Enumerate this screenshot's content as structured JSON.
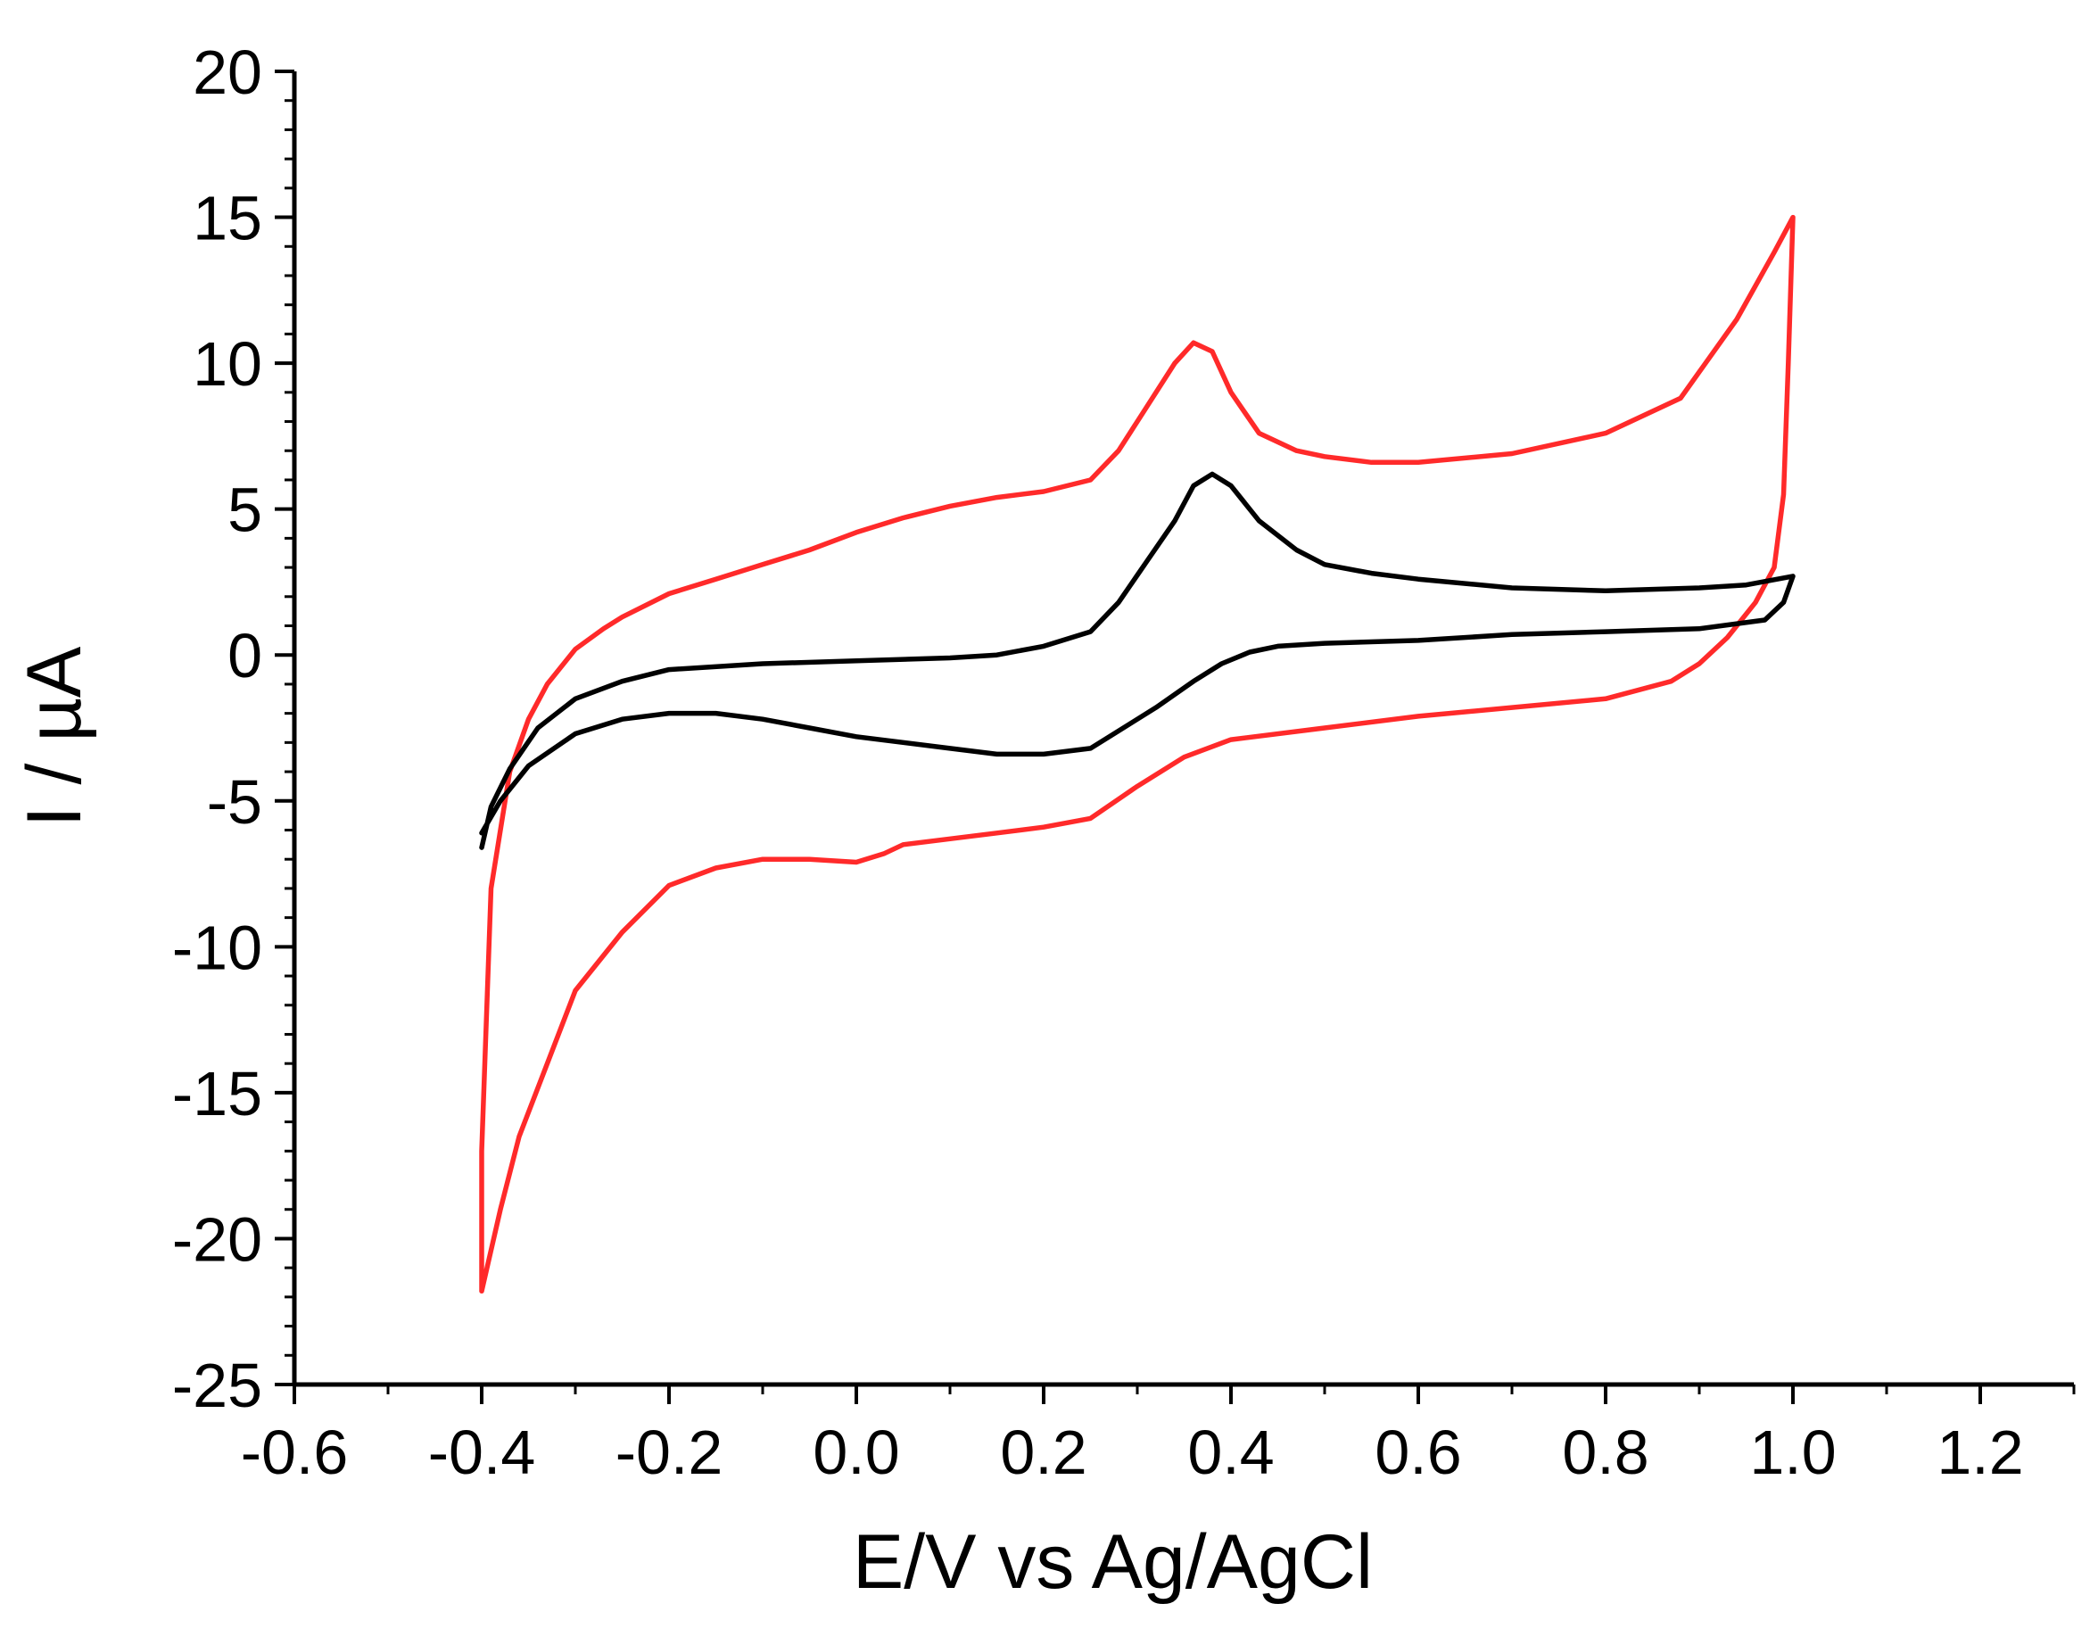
{
  "chart_data": {
    "type": "line",
    "title": "",
    "xlabel": "E/V vs Ag/AgCl",
    "ylabel": "I / µA",
    "xlim": [
      -0.6,
      1.3
    ],
    "ylim": [
      -25,
      20
    ],
    "x_ticks": [
      -0.6,
      -0.4,
      -0.2,
      0.0,
      0.2,
      0.4,
      0.6,
      0.8,
      1.0,
      1.2
    ],
    "x_tick_labels": [
      "-0.6",
      "-0.4",
      "-0.2",
      "0.0",
      "0.2",
      "0.4",
      "0.6",
      "0.8",
      "1.0",
      "1.2"
    ],
    "y_ticks": [
      -25,
      -20,
      -15,
      -10,
      -5,
      0,
      5,
      10,
      15,
      20
    ],
    "y_tick_labels": [
      "-25",
      "-20",
      "-15",
      "-10",
      "-5",
      "0",
      "5",
      "10",
      "15",
      "20"
    ],
    "grid": false,
    "legend": "none",
    "series": [
      {
        "name": "red voltammogram",
        "color": "#ff2a2a",
        "points": [
          [
            -0.4,
            -21.8
          ],
          [
            -0.4,
            -17
          ],
          [
            -0.39,
            -8
          ],
          [
            -0.37,
            -4
          ],
          [
            -0.35,
            -2.2
          ],
          [
            -0.33,
            -1
          ],
          [
            -0.3,
            0.2
          ],
          [
            -0.27,
            0.9
          ],
          [
            -0.25,
            1.3
          ],
          [
            -0.2,
            2.1
          ],
          [
            -0.15,
            2.6
          ],
          [
            -0.1,
            3.1
          ],
          [
            -0.05,
            3.6
          ],
          [
            0.0,
            4.2
          ],
          [
            0.05,
            4.7
          ],
          [
            0.1,
            5.1
          ],
          [
            0.15,
            5.4
          ],
          [
            0.2,
            5.6
          ],
          [
            0.25,
            6.0
          ],
          [
            0.28,
            7.0
          ],
          [
            0.31,
            8.5
          ],
          [
            0.34,
            10.0
          ],
          [
            0.36,
            10.7
          ],
          [
            0.38,
            10.4
          ],
          [
            0.4,
            9.0
          ],
          [
            0.43,
            7.6
          ],
          [
            0.47,
            7.0
          ],
          [
            0.5,
            6.8
          ],
          [
            0.55,
            6.6
          ],
          [
            0.6,
            6.6
          ],
          [
            0.7,
            6.9
          ],
          [
            0.8,
            7.6
          ],
          [
            0.88,
            8.8
          ],
          [
            0.94,
            11.5
          ],
          [
            0.98,
            13.8
          ],
          [
            1.0,
            15.0
          ],
          [
            0.995,
            10.0
          ],
          [
            0.99,
            5.5
          ],
          [
            0.98,
            3.0
          ],
          [
            0.96,
            1.8
          ],
          [
            0.93,
            0.6
          ],
          [
            0.9,
            -0.3
          ],
          [
            0.87,
            -0.9
          ],
          [
            0.8,
            -1.5
          ],
          [
            0.7,
            -1.8
          ],
          [
            0.6,
            -2.1
          ],
          [
            0.5,
            -2.5
          ],
          [
            0.4,
            -2.9
          ],
          [
            0.35,
            -3.5
          ],
          [
            0.3,
            -4.5
          ],
          [
            0.25,
            -5.6
          ],
          [
            0.2,
            -5.9
          ],
          [
            0.15,
            -6.1
          ],
          [
            0.1,
            -6.3
          ],
          [
            0.05,
            -6.5
          ],
          [
            0.03,
            -6.8
          ],
          [
            0.0,
            -7.1
          ],
          [
            -0.05,
            -7.0
          ],
          [
            -0.1,
            -7.0
          ],
          [
            -0.15,
            -7.3
          ],
          [
            -0.2,
            -7.9
          ],
          [
            -0.25,
            -9.5
          ],
          [
            -0.3,
            -11.5
          ],
          [
            -0.33,
            -14
          ],
          [
            -0.36,
            -16.5
          ],
          [
            -0.38,
            -19
          ],
          [
            -0.4,
            -21.8
          ]
        ]
      },
      {
        "name": "black voltammogram",
        "color": "#000000",
        "points": [
          [
            -0.4,
            -6.6
          ],
          [
            -0.39,
            -5.2
          ],
          [
            -0.37,
            -3.9
          ],
          [
            -0.34,
            -2.5
          ],
          [
            -0.3,
            -1.5
          ],
          [
            -0.25,
            -0.9
          ],
          [
            -0.2,
            -0.5
          ],
          [
            -0.1,
            -0.3
          ],
          [
            0.0,
            -0.2
          ],
          [
            0.1,
            -0.1
          ],
          [
            0.15,
            0.0
          ],
          [
            0.2,
            0.3
          ],
          [
            0.25,
            0.8
          ],
          [
            0.28,
            1.8
          ],
          [
            0.31,
            3.2
          ],
          [
            0.34,
            4.6
          ],
          [
            0.36,
            5.8
          ],
          [
            0.38,
            6.2
          ],
          [
            0.4,
            5.8
          ],
          [
            0.43,
            4.6
          ],
          [
            0.47,
            3.6
          ],
          [
            0.5,
            3.1
          ],
          [
            0.55,
            2.8
          ],
          [
            0.6,
            2.6
          ],
          [
            0.7,
            2.3
          ],
          [
            0.8,
            2.2
          ],
          [
            0.9,
            2.3
          ],
          [
            0.95,
            2.4
          ],
          [
            1.0,
            2.7
          ],
          [
            0.99,
            1.8
          ],
          [
            0.97,
            1.2
          ],
          [
            0.9,
            0.9
          ],
          [
            0.8,
            0.8
          ],
          [
            0.7,
            0.7
          ],
          [
            0.6,
            0.5
          ],
          [
            0.5,
            0.4
          ],
          [
            0.45,
            0.3
          ],
          [
            0.42,
            0.1
          ],
          [
            0.39,
            -0.3
          ],
          [
            0.36,
            -0.9
          ],
          [
            0.32,
            -1.8
          ],
          [
            0.28,
            -2.6
          ],
          [
            0.25,
            -3.2
          ],
          [
            0.2,
            -3.4
          ],
          [
            0.15,
            -3.4
          ],
          [
            0.1,
            -3.2
          ],
          [
            0.0,
            -2.8
          ],
          [
            -0.05,
            -2.5
          ],
          [
            -0.1,
            -2.2
          ],
          [
            -0.15,
            -2.0
          ],
          [
            -0.2,
            -2.0
          ],
          [
            -0.25,
            -2.2
          ],
          [
            -0.3,
            -2.7
          ],
          [
            -0.35,
            -3.8
          ],
          [
            -0.38,
            -5.0
          ],
          [
            -0.4,
            -6.1
          ]
        ]
      }
    ]
  }
}
